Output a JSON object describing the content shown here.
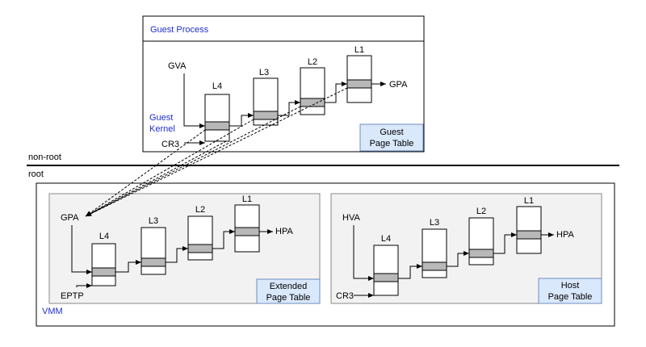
{
  "colors": {
    "frame_stroke": "#000000",
    "panel_fill": "#f2f2f2",
    "panel_stroke": "#8a8a8a",
    "box_fill": "#ffffff",
    "entry_fill": "#b8b8b8",
    "label_box_fill": "#dae8fc",
    "label_box_stroke": "#6c8ebf",
    "blue_text": "#1f2ecc",
    "text": "#000000"
  },
  "guest_process": {
    "title": "Guest Process",
    "guest_kernel_line1": "Guest",
    "guest_kernel_line2": "Kernel",
    "input": "GVA",
    "base_register": "CR3",
    "output": "GPA",
    "levels": [
      "L4",
      "L3",
      "L2",
      "L1"
    ],
    "table_label_line1": "Guest",
    "table_label_line2": "Page Table"
  },
  "divider": {
    "top_label": "non-root",
    "bottom_label": "root"
  },
  "vmm": {
    "title": "VMM",
    "extended": {
      "input": "GPA",
      "base_register": "EPTP",
      "output": "HPA",
      "levels": [
        "L4",
        "L3",
        "L2",
        "L1"
      ],
      "table_label_line1": "Extended",
      "table_label_line2": "Page Table"
    },
    "host": {
      "input": "HVA",
      "base_register": "CR3",
      "output": "HPA",
      "levels": [
        "L4",
        "L3",
        "L2",
        "L1"
      ],
      "table_label_line1": "Host",
      "table_label_line2": "Page Table"
    }
  }
}
